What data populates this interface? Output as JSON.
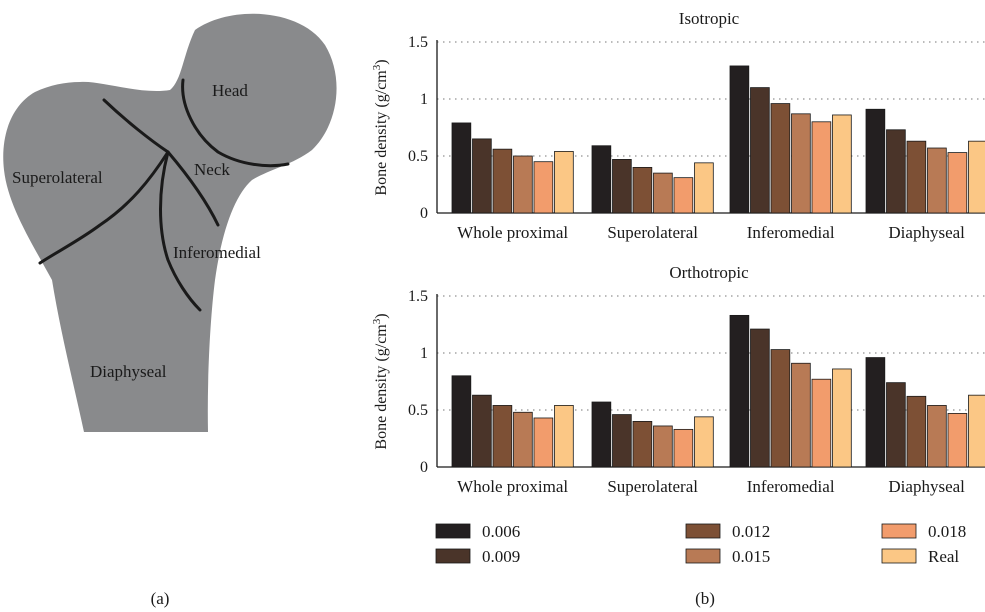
{
  "diagram": {
    "regions": {
      "head": "Head",
      "neck": "Neck",
      "superolateral": "Superolateral",
      "inferomedial": "Inferomedial",
      "diaphyseal": "Diaphyseal"
    },
    "panel_label": "(a)",
    "colors": {
      "bone_fill": "#898a8c",
      "boundary": "#1a1a1a"
    }
  },
  "panel_b_label": "(b)",
  "legend": [
    {
      "label": "0.006",
      "color": "#231f20"
    },
    {
      "label": "0.012",
      "color": "#7d5035"
    },
    {
      "label": "0.018",
      "color": "#f29c6c"
    },
    {
      "label": "0.009",
      "color": "#4a3429"
    },
    {
      "label": "0.015",
      "color": "#b87a55"
    },
    {
      "label": "Real",
      "color": "#fbc785"
    }
  ],
  "chart_data": [
    {
      "type": "bar",
      "title": "Isotropic",
      "ylabel": "Bone density (g/cm",
      "ylabel_sup": "3",
      "ylabel_close": ")",
      "ylim": [
        0,
        1.5
      ],
      "yticks": [
        "0",
        "0.5",
        "1",
        "1.5"
      ],
      "grid": true,
      "categories": [
        "Whole proximal",
        "Superolateral",
        "Inferomedial",
        "Diaphyseal"
      ],
      "series": [
        {
          "name": "0.006",
          "color": "#231f20",
          "values": [
            0.79,
            0.59,
            1.29,
            0.91
          ]
        },
        {
          "name": "0.009",
          "color": "#4a3429",
          "values": [
            0.65,
            0.47,
            1.1,
            0.73
          ]
        },
        {
          "name": "0.012",
          "color": "#7d5035",
          "values": [
            0.56,
            0.4,
            0.96,
            0.63
          ]
        },
        {
          "name": "0.015",
          "color": "#b87a55",
          "values": [
            0.5,
            0.35,
            0.87,
            0.57
          ]
        },
        {
          "name": "0.018",
          "color": "#f29c6c",
          "values": [
            0.45,
            0.31,
            0.8,
            0.53
          ]
        },
        {
          "name": "Real",
          "color": "#fbc785",
          "values": [
            0.54,
            0.44,
            0.86,
            0.63
          ]
        }
      ]
    },
    {
      "type": "bar",
      "title": "Orthotropic",
      "ylabel": "Bone density (g/cm",
      "ylabel_sup": "3",
      "ylabel_close": ")",
      "ylim": [
        0,
        1.5
      ],
      "yticks": [
        "0",
        "0.5",
        "1",
        "1.5"
      ],
      "grid": true,
      "categories": [
        "Whole proximal",
        "Superolateral",
        "Inferomedial",
        "Diaphyseal"
      ],
      "series": [
        {
          "name": "0.006",
          "color": "#231f20",
          "values": [
            0.8,
            0.57,
            1.33,
            0.96
          ]
        },
        {
          "name": "0.009",
          "color": "#4a3429",
          "values": [
            0.63,
            0.46,
            1.21,
            0.74
          ]
        },
        {
          "name": "0.012",
          "color": "#7d5035",
          "values": [
            0.54,
            0.4,
            1.03,
            0.62
          ]
        },
        {
          "name": "0.015",
          "color": "#b87a55",
          "values": [
            0.48,
            0.36,
            0.91,
            0.54
          ]
        },
        {
          "name": "0.018",
          "color": "#f29c6c",
          "values": [
            0.43,
            0.33,
            0.77,
            0.47
          ]
        },
        {
          "name": "Real",
          "color": "#fbc785",
          "values": [
            0.54,
            0.44,
            0.86,
            0.63
          ]
        }
      ]
    }
  ]
}
